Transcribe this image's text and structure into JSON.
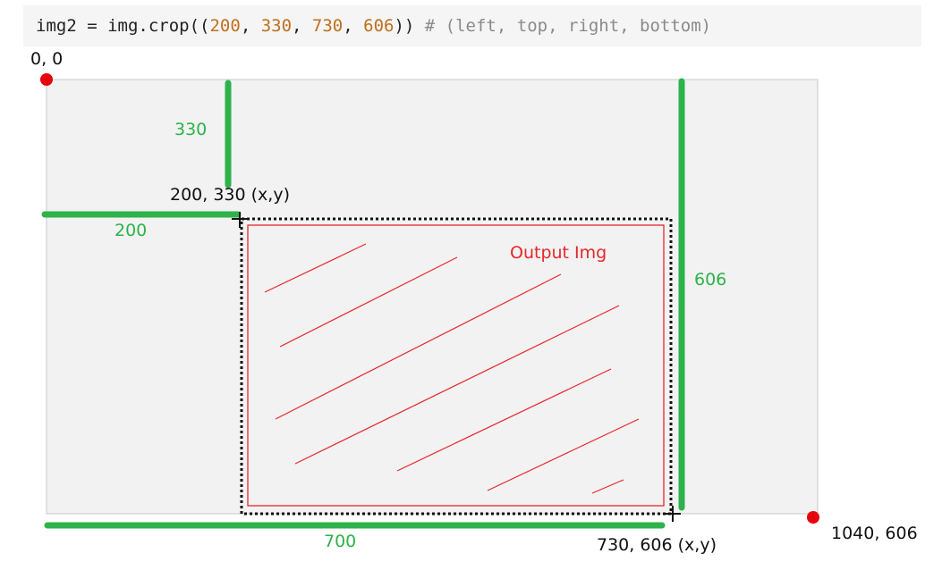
{
  "code": {
    "var": "img2",
    "op": " = ",
    "call_open": "img.crop((",
    "arg1": "200",
    "arg2": "330",
    "arg3": "730",
    "arg4": "606",
    "sep": ", ",
    "call_close": "))",
    "comment": " # (left, top, right, bottom)"
  },
  "labels": {
    "origin": "0, 0",
    "top_left_point": "200, 330 (x,y)",
    "bottom_right_point": "730, 606 (x,y)",
    "image_corner": "1040, 606",
    "output": "Output Img",
    "top_measure": "330",
    "left_measure": "200",
    "right_measure": "606",
    "bottom_measure": "700"
  },
  "colors": {
    "measure_line": "#2db34a",
    "output_border": "#e8262a",
    "corner_dot": "#e8000b",
    "image_bg": "#f2f2f2"
  }
}
